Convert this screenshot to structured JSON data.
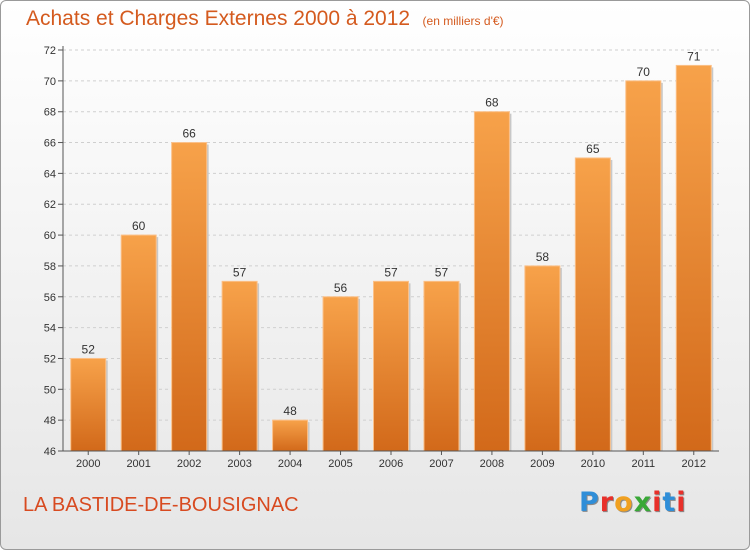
{
  "chart_data": {
    "type": "bar",
    "title": "Achats et Charges Externes 2000 à 2012",
    "subtitle": "(en milliers d'€)",
    "categories": [
      "2000",
      "2001",
      "2002",
      "2003",
      "2004",
      "2005",
      "2006",
      "2007",
      "2008",
      "2009",
      "2010",
      "2011",
      "2012"
    ],
    "values": [
      52,
      60,
      66,
      57,
      48,
      56,
      57,
      57,
      68,
      58,
      65,
      70,
      71
    ],
    "ylim": [
      46,
      72
    ],
    "yticks": [
      46,
      48,
      50,
      52,
      54,
      56,
      58,
      60,
      62,
      64,
      66,
      68,
      70,
      72
    ],
    "grid": true,
    "bar_color": "#f28c2a"
  },
  "footer": {
    "town": "LA BASTIDE-DE-BOUSIGNAC",
    "logo_letters": [
      "P",
      "r",
      "o",
      "x",
      "i",
      "t",
      "i"
    ],
    "logo_colors": [
      "#2f8ed8",
      "#e8302a",
      "#f0a020",
      "#39a837",
      "#e8302a",
      "#2f8ed8",
      "#e8302a"
    ]
  }
}
